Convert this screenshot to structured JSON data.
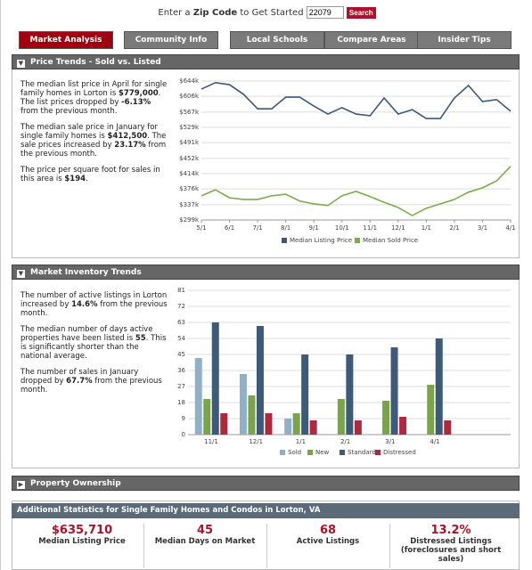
{
  "search": {
    "prompt_pre": "Enter a",
    "prompt_bold": "Zip Code",
    "prompt_post": "to Get Started",
    "zip": "22079",
    "button": "Search"
  },
  "tabs": [
    "Market Analysis",
    "Community Info",
    "Local Schools",
    "Compare Areas",
    "Insider Tips"
  ],
  "sections": [
    {
      "title": "Price Trends - Sold vs. Listed",
      "paragraphs": [
        [
          "The median list price in April for single family homes in Lorton is ",
          "$779,000",
          ". The list prices dropped by ",
          "-6.13%",
          " from the previous month."
        ],
        [
          "The median sale price in January for single family homes is ",
          "$412,500",
          ". The sale prices increased by ",
          "23.17%",
          " from the previous month."
        ],
        [
          "The price per square foot for sales in this area is ",
          "$194",
          "."
        ]
      ]
    },
    {
      "title": "Market Inventory Trends",
      "paragraphs": [
        [
          "The number of active listings in Lorton increased by ",
          "14.6%",
          " from the previous month."
        ],
        [
          "The median number of days active properties have been listed is ",
          "55",
          ". This is significantly shorter than the national average."
        ],
        [
          "The number of sales in January dropped by ",
          "67.7%",
          " from the previous month."
        ]
      ]
    },
    {
      "title": "Property Ownership"
    }
  ],
  "stats": {
    "title": "Additional Statistics for Single Family Homes and Condos in Lorton, VA",
    "items": [
      {
        "value": "$635,710",
        "label": "Median Listing Price"
      },
      {
        "value": "45",
        "label": "Median Days on Market"
      },
      {
        "value": "68",
        "label": "Active Listings"
      },
      {
        "value": "13.2%",
        "label": "Distressed Listings (foreclosures and short sales)"
      }
    ]
  },
  "chart_data": [
    {
      "type": "line",
      "categories": [
        "5/1",
        null,
        "6/1",
        null,
        "7/1",
        null,
        "8/1",
        null,
        "9/1",
        null,
        "10/1",
        null,
        "11/1",
        null,
        "12/1",
        null,
        "1/1",
        null,
        "2/1",
        null,
        "3/1",
        null,
        "4/1"
      ],
      "series": [
        {
          "name": "Median Listing Price",
          "color": "#3c5a78",
          "values": [
            624,
            640,
            635,
            611,
            575,
            575,
            604,
            604,
            582,
            562,
            578,
            562,
            558,
            602,
            562,
            573,
            551,
            551,
            602,
            633,
            593,
            598,
            569
          ]
        },
        {
          "name": "Median Sold Price",
          "color": "#7aad4a",
          "values": [
            359,
            374,
            354,
            350,
            350,
            359,
            363,
            346,
            339,
            335,
            359,
            370,
            357,
            343,
            330,
            310,
            328,
            339,
            350,
            368,
            379,
            396,
            432
          ]
        }
      ],
      "ylim": [
        299,
        644
      ],
      "yticks": [
        {
          "value": 299,
          "label": "$299k"
        },
        {
          "value": 337,
          "label": "$337k"
        },
        {
          "value": 376,
          "label": "$376k"
        },
        {
          "value": 414,
          "label": "$414k"
        },
        {
          "value": 452,
          "label": "$452k"
        },
        {
          "value": 491,
          "label": "$491k"
        },
        {
          "value": 529,
          "label": "$529k"
        },
        {
          "value": 567,
          "label": "$567k"
        },
        {
          "value": 606,
          "label": "$606k"
        },
        {
          "value": 644,
          "label": "$644k"
        }
      ],
      "grid": true,
      "legend": "bottom"
    },
    {
      "type": "bar",
      "categories": [
        "11/1",
        "12/1",
        "1/1",
        "2/1",
        "3/1",
        "4/1"
      ],
      "series": [
        {
          "name": "Sold",
          "color": "#8fb0c8",
          "values": [
            43,
            34,
            9,
            0,
            0,
            0
          ]
        },
        {
          "name": "New",
          "color": "#7ba34a",
          "values": [
            20,
            22,
            12,
            20,
            19,
            28
          ]
        },
        {
          "name": "Standard",
          "color": "#3d5a7a",
          "values": [
            63,
            61,
            45,
            45,
            49,
            54
          ]
        },
        {
          "name": "Distressed",
          "color": "#b0283c",
          "values": [
            12,
            12,
            8,
            8,
            10,
            8
          ]
        }
      ],
      "ylim": [
        0,
        81
      ],
      "yticks": [
        0,
        9,
        18,
        27,
        36,
        45,
        54,
        63,
        72,
        81
      ],
      "grid": true,
      "legend": "bottom"
    }
  ]
}
